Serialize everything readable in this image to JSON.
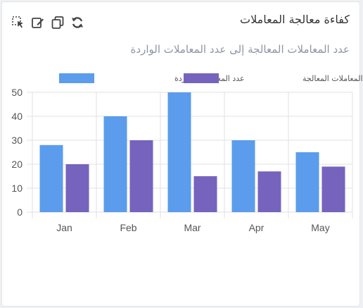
{
  "card": {
    "title": "كفاءة معالجة المعاملات",
    "subtitle": "عدد المعاملات المعالجة إلى عدد المعاملات الواردة"
  },
  "toolbar": {
    "icons": [
      "select-cursor-icon",
      "edit-icon",
      "copy-icon",
      "refresh-icon"
    ]
  },
  "chart_data": {
    "type": "bar",
    "categories": [
      "Jan",
      "Feb",
      "Mar",
      "Apr",
      "May"
    ],
    "series": [
      {
        "name": "عدد المعاملات الواردة",
        "values": [
          28,
          40,
          50,
          30,
          25
        ],
        "color": "#5b9ced"
      },
      {
        "name": "عدد المعاملات المعالجة",
        "values": [
          20,
          30,
          15,
          17,
          19
        ],
        "color": "#7663bd"
      }
    ],
    "ylim": [
      0,
      50
    ],
    "yticks": [
      0,
      10,
      20,
      30,
      40,
      50
    ],
    "grid": true,
    "legend": "top"
  }
}
